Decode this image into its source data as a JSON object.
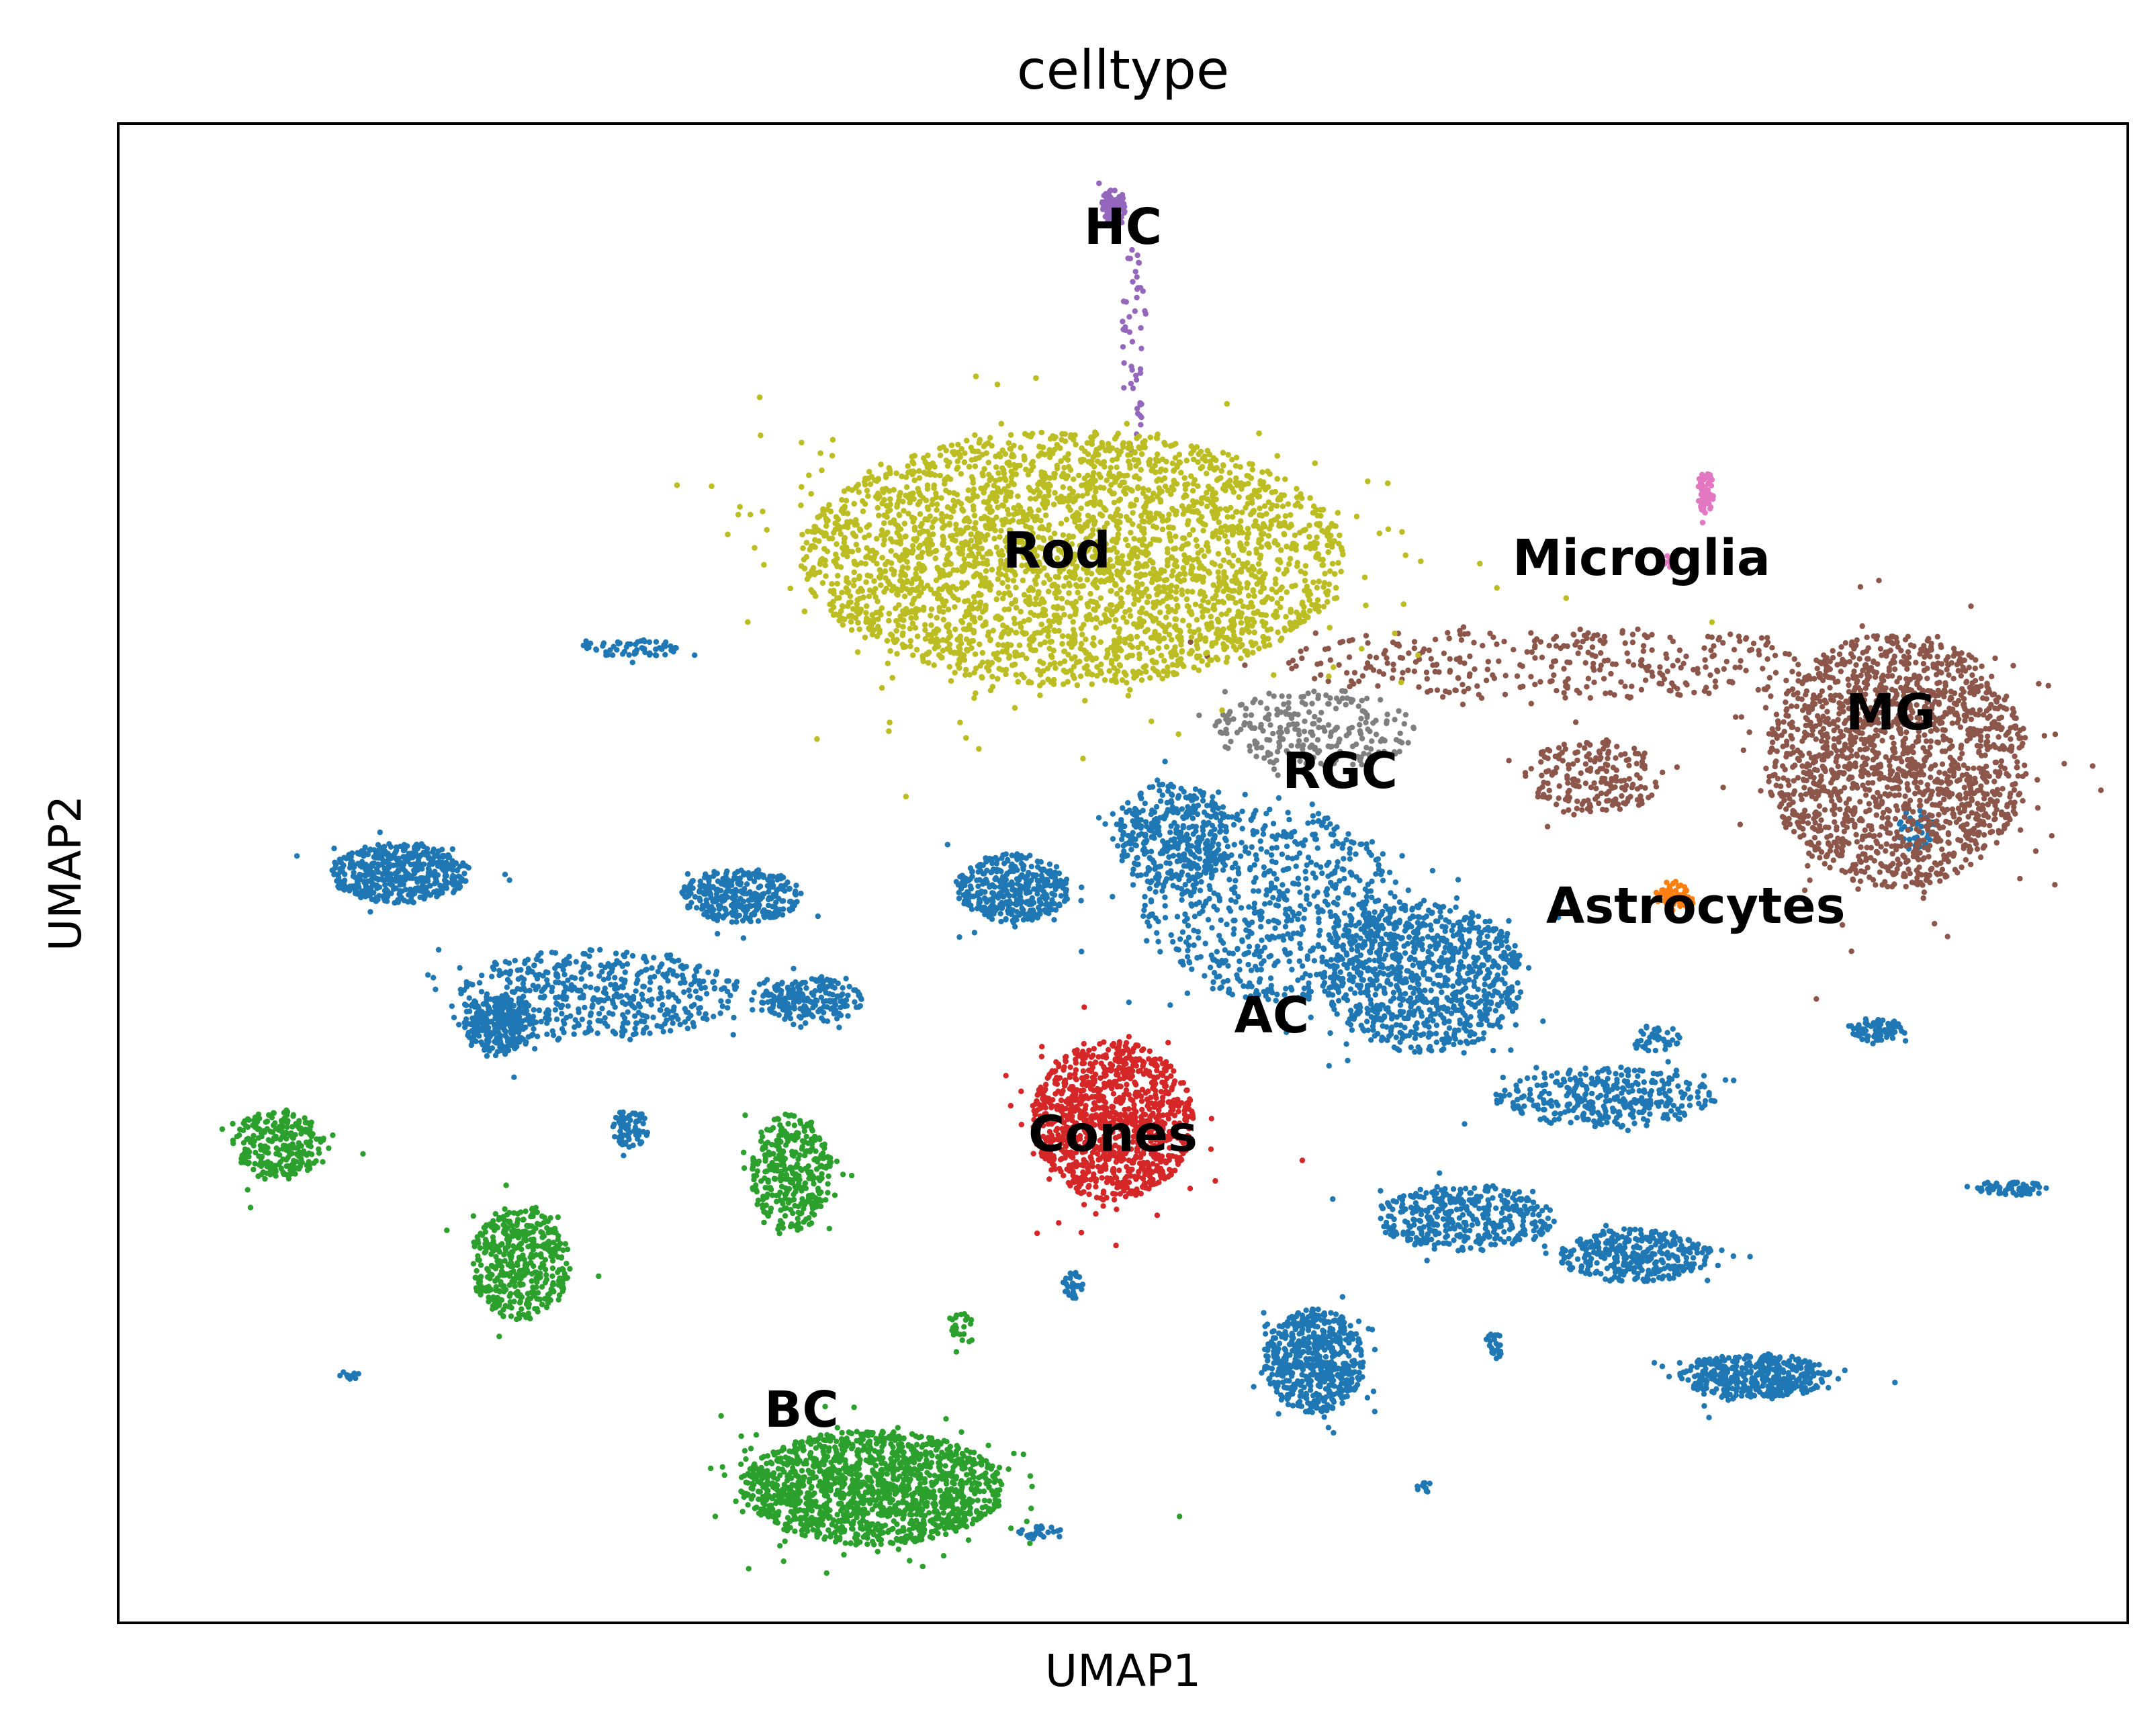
{
  "chart_data": {
    "type": "scatter",
    "title": "celltype",
    "xlabel": "UMAP1",
    "ylabel": "UMAP2",
    "xticks": [],
    "yticks": [],
    "xlim": [
      0,
      100
    ],
    "ylim": [
      0,
      100
    ],
    "grid": false,
    "legend": "on data",
    "series": [
      {
        "name": "AC",
        "color": "#1f77b4",
        "label_at": [
          57.4,
          40.3
        ],
        "clusters": [
          {
            "cx": 57.4,
            "cy": 48.0,
            "rx": 6.5,
            "ry": 6.5,
            "n": 700
          },
          {
            "cx": 65.0,
            "cy": 43.0,
            "rx": 5.0,
            "ry": 5.0,
            "n": 900
          },
          {
            "cx": 74.0,
            "cy": 35.0,
            "rx": 5.5,
            "ry": 2.0,
            "n": 350
          },
          {
            "cx": 14.0,
            "cy": 50.0,
            "rx": 3.5,
            "ry": 2.0,
            "n": 500
          },
          {
            "cx": 24.0,
            "cy": 42.0,
            "rx": 7.0,
            "ry": 3.0,
            "n": 500
          },
          {
            "cx": 19.0,
            "cy": 40.0,
            "rx": 1.8,
            "ry": 2.0,
            "n": 300
          },
          {
            "cx": 31.0,
            "cy": 48.5,
            "rx": 3.0,
            "ry": 1.8,
            "n": 320
          },
          {
            "cx": 34.5,
            "cy": 41.5,
            "rx": 2.5,
            "ry": 1.5,
            "n": 220
          },
          {
            "cx": 44.5,
            "cy": 49.0,
            "rx": 2.8,
            "ry": 2.3,
            "n": 400
          },
          {
            "cx": 52.5,
            "cy": 52.5,
            "rx": 3.0,
            "ry": 3.5,
            "n": 350
          },
          {
            "cx": 59.5,
            "cy": 17.5,
            "rx": 2.5,
            "ry": 3.5,
            "n": 550
          },
          {
            "cx": 67.0,
            "cy": 27.0,
            "rx": 4.5,
            "ry": 2.2,
            "n": 400
          },
          {
            "cx": 75.5,
            "cy": 24.5,
            "rx": 3.8,
            "ry": 1.8,
            "n": 350
          },
          {
            "cx": 81.5,
            "cy": 16.5,
            "rx": 3.8,
            "ry": 1.5,
            "n": 400
          },
          {
            "cx": 76.5,
            "cy": 39.0,
            "rx": 1.2,
            "ry": 0.9,
            "n": 40
          },
          {
            "cx": 87.5,
            "cy": 39.5,
            "rx": 1.5,
            "ry": 0.8,
            "n": 80
          },
          {
            "cx": 94.3,
            "cy": 29.0,
            "rx": 1.8,
            "ry": 0.5,
            "n": 60
          },
          {
            "cx": 25.5,
            "cy": 65.0,
            "rx": 2.5,
            "ry": 0.6,
            "n": 60
          },
          {
            "cx": 25.5,
            "cy": 33.0,
            "rx": 0.9,
            "ry": 1.3,
            "n": 70
          },
          {
            "cx": 47.5,
            "cy": 22.5,
            "rx": 0.5,
            "ry": 0.9,
            "n": 30
          },
          {
            "cx": 68.5,
            "cy": 18.5,
            "rx": 0.5,
            "ry": 0.9,
            "n": 25
          },
          {
            "cx": 46.0,
            "cy": 6.0,
            "rx": 1.2,
            "ry": 0.5,
            "n": 25
          },
          {
            "cx": 65.0,
            "cy": 9.0,
            "rx": 0.4,
            "ry": 0.4,
            "n": 12
          },
          {
            "cx": 11.5,
            "cy": 16.5,
            "rx": 0.5,
            "ry": 0.3,
            "n": 12
          },
          {
            "cx": 89.5,
            "cy": 53.0,
            "rx": 1.0,
            "ry": 1.5,
            "n": 40
          }
        ]
      },
      {
        "name": "Astrocytes",
        "color": "#ff7f0e",
        "label_at": [
          78.5,
          47.6
        ],
        "clusters": [
          {
            "cx": 77.5,
            "cy": 48.5,
            "rx": 1.0,
            "ry": 1.0,
            "n": 60
          }
        ]
      },
      {
        "name": "BC",
        "color": "#2ca02c",
        "label_at": [
          34.0,
          14.0
        ],
        "clusters": [
          {
            "cx": 37.5,
            "cy": 9.0,
            "rx": 6.5,
            "ry": 3.8,
            "n": 1500
          },
          {
            "cx": 20.0,
            "cy": 24.0,
            "rx": 2.5,
            "ry": 3.8,
            "n": 450
          },
          {
            "cx": 33.5,
            "cy": 30.0,
            "rx": 2.0,
            "ry": 4.0,
            "n": 350
          },
          {
            "cx": 8.0,
            "cy": 32.0,
            "rx": 2.3,
            "ry": 2.3,
            "n": 250
          },
          {
            "cx": 42.0,
            "cy": 19.5,
            "rx": 0.8,
            "ry": 1.3,
            "n": 25
          }
        ]
      },
      {
        "name": "Cones",
        "color": "#d62728",
        "label_at": [
          49.5,
          32.4
        ],
        "clusters": [
          {
            "cx": 49.5,
            "cy": 33.5,
            "rx": 4.0,
            "ry": 5.3,
            "n": 1100
          }
        ]
      },
      {
        "name": "HC",
        "color": "#9467bd",
        "label_at": [
          50.0,
          92.9
        ],
        "clusters": [
          {
            "cx": 49.5,
            "cy": 94.5,
            "rx": 0.6,
            "ry": 1.2,
            "n": 100
          },
          {
            "cx": 50.5,
            "cy": 85.0,
            "rx": 0.6,
            "ry": 7.0,
            "n": 50
          }
        ]
      },
      {
        "name": "MG",
        "color": "#8c564b",
        "label_at": [
          88.2,
          60.5
        ],
        "clusters": [
          {
            "cx": 88.5,
            "cy": 57.5,
            "rx": 6.5,
            "ry": 8.5,
            "n": 1700
          },
          {
            "cx": 73.5,
            "cy": 56.5,
            "rx": 3.5,
            "ry": 2.5,
            "n": 200
          },
          {
            "cx": 72.0,
            "cy": 64.0,
            "rx": 14.0,
            "ry": 2.5,
            "n": 350
          }
        ]
      },
      {
        "name": "Microglia",
        "color": "#e377c2",
        "label_at": [
          75.8,
          70.8
        ],
        "clusters": [
          {
            "cx": 79.0,
            "cy": 75.5,
            "rx": 0.4,
            "ry": 1.5,
            "n": 60
          },
          {
            "cx": 77.2,
            "cy": 70.8,
            "rx": 0.5,
            "ry": 0.4,
            "n": 10
          }
        ]
      },
      {
        "name": "RGC",
        "color": "#7f7f7f",
        "label_at": [
          60.8,
          56.6
        ],
        "clusters": [
          {
            "cx": 59.5,
            "cy": 59.5,
            "rx": 5.0,
            "ry": 2.8,
            "n": 250
          }
        ]
      },
      {
        "name": "Rod",
        "color": "#bcbd22",
        "label_at": [
          46.7,
          71.3
        ],
        "clusters": [
          {
            "cx": 47.5,
            "cy": 71.0,
            "rx": 13.5,
            "ry": 8.5,
            "n": 6500
          }
        ]
      }
    ]
  }
}
